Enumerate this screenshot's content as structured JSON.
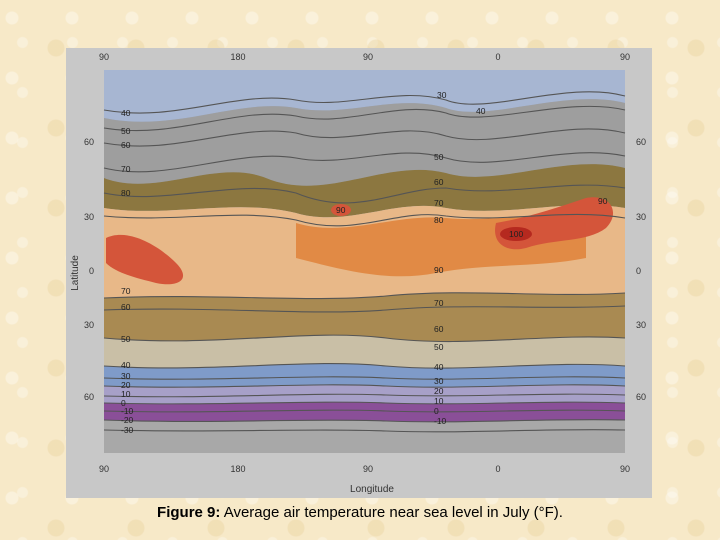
{
  "map": {
    "x_axis_title": "Longitude",
    "y_axis_title": "Latitude",
    "top_ticks": [
      "90",
      "180",
      "90",
      "0",
      "90"
    ],
    "bottom_ticks": [
      "90",
      "180",
      "90",
      "0",
      "90"
    ],
    "left_ticks": [
      "60",
      "30",
      "0",
      "30",
      "60"
    ],
    "right_ticks": [
      "60",
      "30",
      "0",
      "30",
      "60"
    ],
    "isotherm_labels_west": [
      "40",
      "50",
      "60",
      "70",
      "80",
      "70",
      "60",
      "50",
      "40",
      "30",
      "20",
      "10",
      "0",
      "-10",
      "-20",
      "-30"
    ],
    "isotherm_labels_center": [
      "30",
      "40",
      "50",
      "60",
      "70",
      "80",
      "90",
      "70",
      "60",
      "50",
      "40",
      "30",
      "20",
      "10",
      "0",
      "-10"
    ],
    "hot_spot_labels": [
      "90",
      "100",
      "90"
    ],
    "colors": {
      "land": "#8e8e8e",
      "cold_purple": "#8a4f98",
      "lavender": "#a7a0c8",
      "blue": "#7f9bc9",
      "tan": "#a98a52",
      "olive": "#8c7740",
      "peach": "#e8b888",
      "orange": "#e18a45",
      "red": "#d4553a",
      "deep_red": "#b5291f"
    }
  },
  "caption": {
    "label": "Figure 9:",
    "text": " Average air temperature near sea level in July (°F)."
  }
}
